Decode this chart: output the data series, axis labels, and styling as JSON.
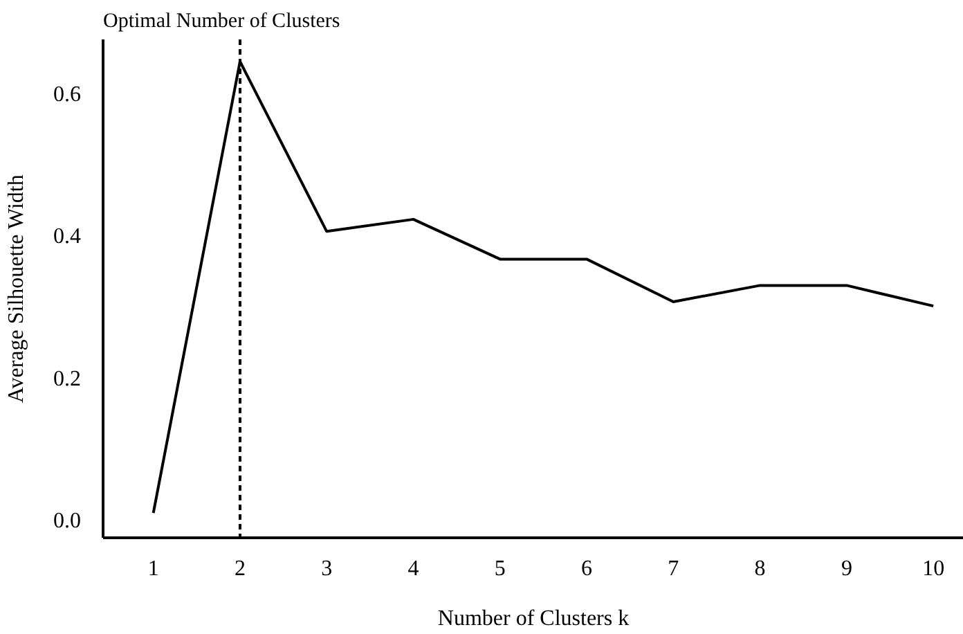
{
  "chart_data": {
    "type": "line",
    "title": "Optimal Number of Clusters",
    "xlabel": "Number of Clusters k",
    "ylabel": "Average Silhouette Width",
    "x": [
      1,
      2,
      3,
      4,
      5,
      6,
      7,
      8,
      9,
      10
    ],
    "series": [
      {
        "color": "#000000",
        "values": [
          0.01,
          0.645,
          0.406,
          0.423,
          0.367,
          0.367,
          0.307,
          0.33,
          0.33,
          0.301
        ]
      }
    ],
    "xlim": [
      0.42,
      10.35
    ],
    "xticks": [
      1,
      2,
      3,
      4,
      5,
      6,
      7,
      8,
      9,
      10
    ],
    "ylim": [
      -0.025,
      0.676
    ],
    "yticks": [
      {
        "value": 0,
        "label": "0.0"
      },
      {
        "value": 0.2,
        "label": "0.2"
      },
      {
        "value": 0.4,
        "label": "0.4"
      },
      {
        "value": 0.6,
        "label": "0.6"
      }
    ],
    "ref_lines": [
      {
        "axis": "x",
        "value": 2,
        "color": "#000000",
        "line_style": "dashed"
      }
    ],
    "grid": false,
    "marker": "none",
    "line_style": "solid"
  }
}
